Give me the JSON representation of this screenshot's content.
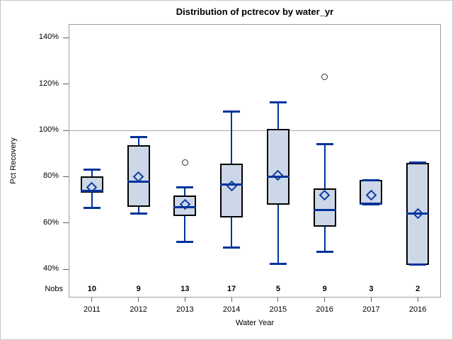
{
  "chart_data": {
    "type": "box",
    "title": "Distribution of pctrecov by water_yr",
    "xlabel": "Water Year",
    "ylabel": "Pct Recovery",
    "nobs_label": "Nobs",
    "categories": [
      "2011",
      "2012",
      "2013",
      "2014",
      "2015",
      "2016",
      "2017",
      "2016"
    ],
    "nobs": [
      10,
      9,
      13,
      17,
      5,
      9,
      3,
      2
    ],
    "series": [
      {
        "category": "2011",
        "nobs": 10,
        "low": 66.5,
        "q1": 73,
        "median": 74,
        "q3": 80,
        "high": 83,
        "mean": 75.5,
        "outliers": []
      },
      {
        "category": "2012",
        "nobs": 9,
        "low": 64,
        "q1": 67,
        "median": 78,
        "q3": 93.5,
        "high": 97,
        "mean": 80,
        "outliers": []
      },
      {
        "category": "2013",
        "nobs": 13,
        "low": 52,
        "q1": 63,
        "median": 67,
        "q3": 72,
        "high": 75.5,
        "mean": 68,
        "outliers": [
          86
        ]
      },
      {
        "category": "2014",
        "nobs": 17,
        "low": 49.5,
        "q1": 62.5,
        "median": 76.5,
        "q3": 85.5,
        "high": 108,
        "mean": 76,
        "outliers": []
      },
      {
        "category": "2015",
        "nobs": 5,
        "low": 42.5,
        "q1": 68,
        "median": 80,
        "q3": 100.5,
        "high": 112,
        "mean": 80.5,
        "outliers": []
      },
      {
        "category": "2016",
        "nobs": 9,
        "low": 47.5,
        "q1": 58.5,
        "median": 65.5,
        "q3": 75,
        "high": 94,
        "mean": 72,
        "outliers": [
          123
        ]
      },
      {
        "category": "2017",
        "nobs": 3,
        "low": 68,
        "q1": 68,
        "median": 68.5,
        "q3": 78.5,
        "high": 78.5,
        "mean": 72,
        "outliers": []
      },
      {
        "category": "2016",
        "nobs": 2,
        "low": 42,
        "q1": 42,
        "median": 64,
        "q3": 86,
        "high": 86,
        "mean": 64,
        "outliers": []
      }
    ],
    "y_axis": {
      "ticks": [
        140,
        120,
        100,
        80,
        60,
        40
      ],
      "tick_suffix": "%",
      "range": [
        28,
        146
      ],
      "grid": false
    },
    "reference_line": 100,
    "legend": null
  },
  "colors": {
    "box_fill": "#ccd7e7",
    "box_stroke": "#000000",
    "blue_line": "#003399",
    "mean_marker": "#0d3aa3",
    "outlier_stroke": "#2f2f2f",
    "reference_line": "#a8a8a8",
    "axis_frame": "#9c9c9c",
    "tick_mark": "#5f5f5f",
    "text": "#000000"
  }
}
